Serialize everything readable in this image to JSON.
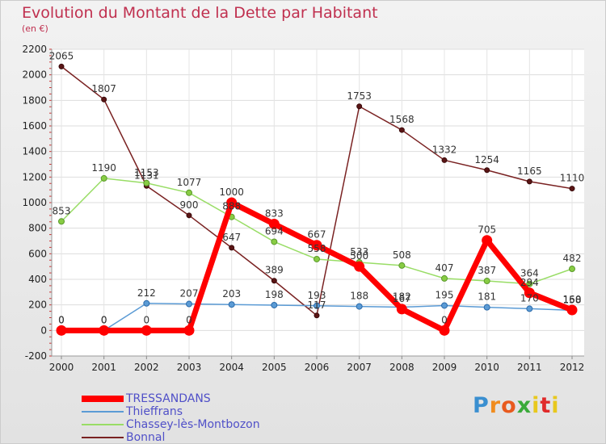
{
  "title": "Evolution du Montant de la Dette par Habitant",
  "unit": "(en €)",
  "logo": {
    "text": "Proxiti"
  },
  "chart_data": {
    "type": "line",
    "categories": [
      "2000",
      "2001",
      "2002",
      "2003",
      "2004",
      "2005",
      "2006",
      "2007",
      "2008",
      "2009",
      "2010",
      "2011",
      "2012"
    ],
    "ylim": [
      -200,
      2200
    ],
    "yticks": [
      -200,
      0,
      200,
      400,
      600,
      800,
      1000,
      1200,
      1400,
      1600,
      1800,
      2000,
      2200
    ],
    "grid": true,
    "legend_position": "bottom-left",
    "series": [
      {
        "name": "TRESSANDANS",
        "color": "#ff0000",
        "values": [
          0,
          0,
          0,
          0,
          1000,
          833,
          667,
          500,
          167,
          0,
          705,
          294,
          160
        ],
        "labels": [
          "0",
          "0",
          "0",
          "0",
          "1000",
          "833",
          "667",
          "500",
          "167",
          "0",
          "705",
          "294",
          "160"
        ]
      },
      {
        "name": "Thieffrans",
        "color": "#5b9bd5",
        "values": [
          0,
          0,
          212,
          207,
          203,
          198,
          193,
          188,
          182,
          195,
          181,
          170,
          158
        ],
        "labels": [
          "0",
          "0",
          "212",
          "207",
          "203",
          "198",
          "193",
          "188",
          "182",
          "195",
          "181",
          "170",
          "158"
        ]
      },
      {
        "name": "Chassey-lès-Montbozon",
        "color": "#99dd66",
        "values": [
          853,
          1190,
          1153,
          1077,
          888,
          694,
          558,
          533,
          508,
          407,
          387,
          364,
          482
        ],
        "labels": [
          "853",
          "1190",
          "1153",
          "1077",
          "888",
          "694",
          "558",
          "533",
          "508",
          "407",
          "387",
          "364",
          "482"
        ]
      },
      {
        "name": "Bonnal",
        "color": "#7a2222",
        "values": [
          2065,
          1807,
          1131,
          900,
          647,
          389,
          117,
          1753,
          1568,
          1332,
          1254,
          1165,
          1110
        ],
        "labels": [
          "2065",
          "1807",
          "1131",
          "900",
          "647",
          "389",
          "117",
          "1753",
          "1568",
          "1332",
          "1254",
          "1165",
          "1110"
        ]
      }
    ]
  }
}
